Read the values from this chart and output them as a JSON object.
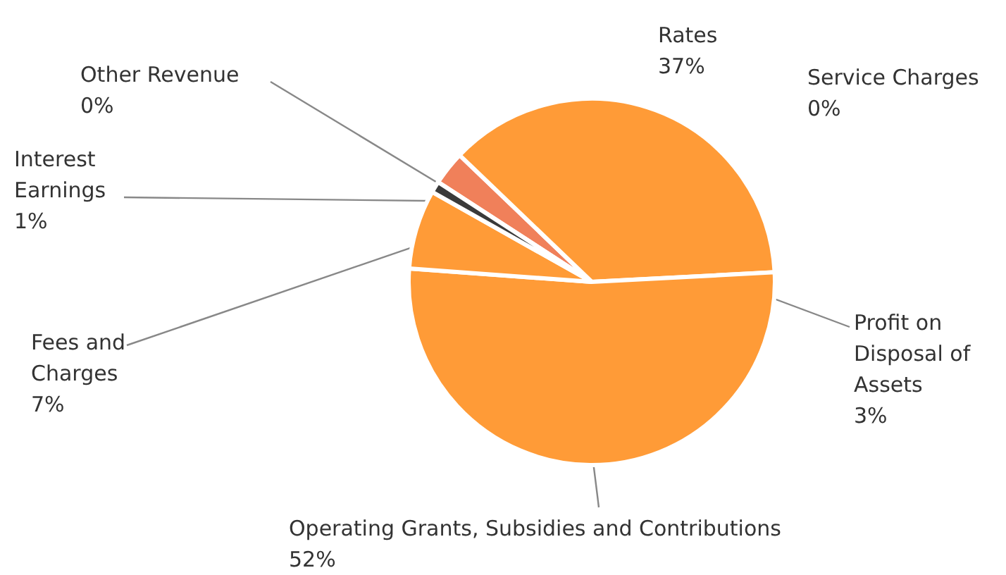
{
  "chart_data": {
    "type": "pie",
    "categories": [
      "Profit on Disposal of Assets",
      "Rates",
      "Service Charges",
      "Operating Grants, Subsidies and Contributions",
      "Fees and Charges",
      "Interest Earnings",
      "Other Revenue"
    ],
    "values": [
      3,
      37,
      0,
      52,
      7,
      1,
      0
    ],
    "value_labels": [
      "3%",
      "37%",
      "0%",
      "52%",
      "7%",
      "1%",
      "0%"
    ],
    "colors": [
      "#f0805a",
      "#ff9b37",
      "#ff9b37",
      "#ff9b37",
      "#ff9b37",
      "#3a3a3a",
      "#ff9b37"
    ]
  }
}
